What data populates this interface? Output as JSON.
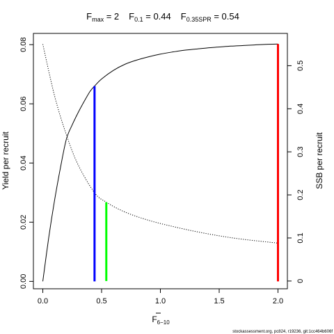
{
  "chart_data": {
    "type": "line",
    "title": {
      "fmax_label": "F",
      "fmax_sub": "max",
      "fmax_value": " = 2",
      "f01_label": "F",
      "f01_sub": "0.1",
      "f01_value": " = 0.44",
      "fspr_label": "F",
      "fspr_sub": "0.35SPR",
      "fspr_value": " = 0.54"
    },
    "xlabel": "F",
    "xlabel_sub": "6−10",
    "ylabel_left": "Yield per recruit",
    "ylabel_right": "SSB per recruit",
    "xlim": [
      -0.08,
      2.08
    ],
    "ylim_left": [
      -0.0025,
      0.0838
    ],
    "ylim_right": [
      -0.018,
      0.575
    ],
    "x_ticks": [
      0,
      0.5,
      1,
      1.5,
      2
    ],
    "x_tick_labels": [
      "0.0",
      "0.5",
      "1.0",
      "1.5",
      "2.0"
    ],
    "y_left_ticks": [
      0,
      0.02,
      0.04,
      0.06,
      0.08
    ],
    "y_left_tick_labels": [
      "0.00",
      "0.02",
      "0.04",
      "0.06",
      "0.08"
    ],
    "y_right_ticks": [
      0,
      0.1,
      0.2,
      0.3,
      0.4,
      0.5
    ],
    "y_right_tick_labels": [
      "0",
      "0.1",
      "0.2",
      "0.3",
      "0.4",
      "0.5"
    ],
    "series": [
      {
        "axis": "left",
        "style": "solid",
        "color": "#000000",
        "x": [
          0,
          0.05,
          0.1,
          0.15,
          0.2,
          0.25,
          0.3,
          0.35,
          0.4,
          0.44,
          0.5,
          0.6,
          0.7,
          0.8,
          0.9,
          1.0,
          1.1,
          1.2,
          1.3,
          1.4,
          1.5,
          1.6,
          1.7,
          1.8,
          1.9,
          2.0
        ],
        "y": [
          0,
          0.0147,
          0.0274,
          0.0384,
          0.048,
          0.0529,
          0.057,
          0.0607,
          0.0641,
          0.066,
          0.0684,
          0.0713,
          0.0734,
          0.0748,
          0.0759,
          0.0768,
          0.0775,
          0.0781,
          0.0785,
          0.0789,
          0.0792,
          0.0795,
          0.0797,
          0.0799,
          0.0801,
          0.0802
        ]
      },
      {
        "axis": "right",
        "style": "dotted",
        "color": "#000000",
        "x": [
          0,
          0.1,
          0.2,
          0.3,
          0.44,
          0.54,
          0.7,
          0.9,
          1.1,
          1.3,
          1.5,
          1.7,
          2.0
        ],
        "y": [
          0.55,
          0.43,
          0.34,
          0.27,
          0.205,
          0.183,
          0.16,
          0.141,
          0.127,
          0.115,
          0.105,
          0.097,
          0.088
        ]
      }
    ],
    "markers": [
      {
        "label": "F0.1",
        "x": 0.44,
        "axis": "left",
        "y": 0.066,
        "color": "#0000ff"
      },
      {
        "label": "F0.35SPR",
        "x": 0.54,
        "axis": "right",
        "y": 0.183,
        "color": "#00ff00"
      },
      {
        "label": "Fmax",
        "x": 2.0,
        "axis": "left",
        "y": 0.0802,
        "color": "#ff0000"
      }
    ]
  },
  "footer": {
    "text": "stockassessment.org, pc824, r19236, git:1cc464b606f"
  }
}
